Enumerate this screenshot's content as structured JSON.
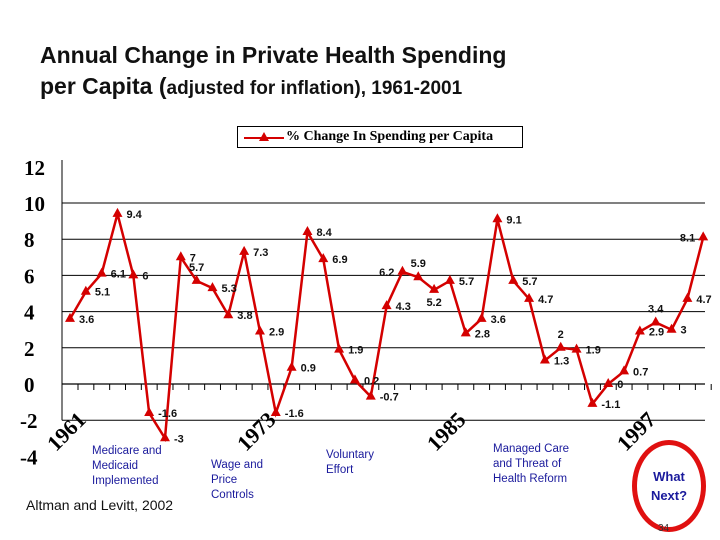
{
  "title_line1": "Annual Change in Private Health Spending",
  "title_line2_big": "per Capita (",
  "title_line2_small": "adjusted for inflation), 1961-2001",
  "chart_data": {
    "type": "line",
    "title": "Annual Change in Private Health Spending per Capita (adjusted for inflation), 1961-2001",
    "x": [
      1961,
      1962,
      1963,
      1964,
      1965,
      1966,
      1967,
      1968,
      1969,
      1970,
      1971,
      1972,
      1973,
      1974,
      1975,
      1976,
      1977,
      1978,
      1979,
      1980,
      1981,
      1982,
      1983,
      1984,
      1985,
      1986,
      1987,
      1988,
      1989,
      1990,
      1991,
      1992,
      1993,
      1994,
      1995,
      1996,
      1997,
      1998,
      1999,
      2000,
      2001
    ],
    "series": [
      {
        "name": "% Change In Spending per Capita",
        "color": "#d40000",
        "values": [
          3.6,
          5.1,
          6.1,
          9.4,
          6,
          -1.6,
          -3,
          7,
          5.7,
          5.3,
          3.8,
          7.3,
          2.9,
          -1.6,
          0.9,
          8.4,
          6.9,
          1.9,
          0.2,
          -0.7,
          4.3,
          6.2,
          5.9,
          5.2,
          5.7,
          2.8,
          3.6,
          9.1,
          5.7,
          4.7,
          1.3,
          2,
          1.9,
          -1.1,
          0,
          0.7,
          2.9,
          3.4,
          3,
          4.7,
          8.1
        ]
      }
    ],
    "ylim": [
      -4,
      12
    ],
    "yticks": [
      "12",
      "10",
      "8",
      "6",
      "4",
      "2",
      "0",
      "-2",
      "-4"
    ],
    "xtick_labels": [
      "1961",
      "1973",
      "1985",
      "1997"
    ],
    "legend": "top-center",
    "grid": true
  },
  "annotations": [
    {
      "lines": [
        "Medicare and",
        "Medicaid",
        "Implemented"
      ]
    },
    {
      "lines": [
        "Wage and",
        "Price",
        "Controls"
      ]
    },
    {
      "lines": [
        "Voluntary",
        "Effort"
      ]
    },
    {
      "lines": [
        "Managed Care",
        "and Threat of",
        "Health Reform"
      ]
    }
  ],
  "callout": {
    "line1": "What",
    "line2": "Next?"
  },
  "citation": "Altman and Levitt, 2002",
  "page_number": "34"
}
